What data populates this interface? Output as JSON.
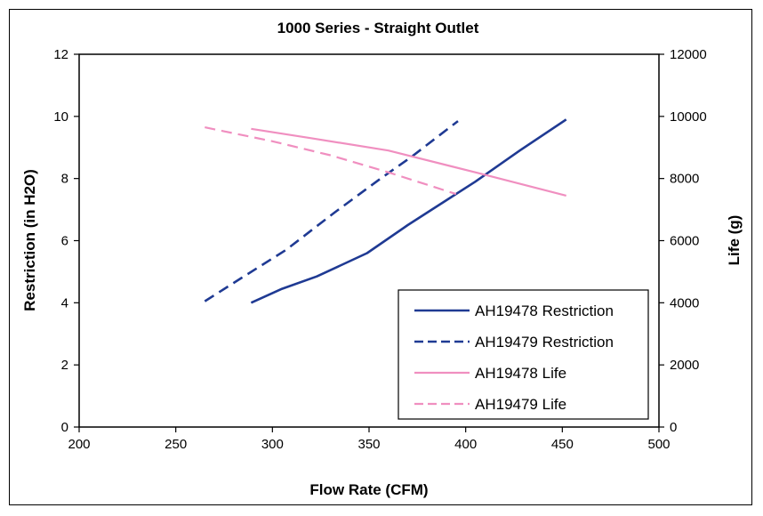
{
  "chart_data": {
    "type": "line",
    "title": "1000 Series - Straight Outlet",
    "xlabel": "Flow Rate (CFM)",
    "ylabel": "Restriction (in H2O)",
    "y2label": "Life (g)",
    "xlim": [
      200,
      500
    ],
    "ylim": [
      0,
      12
    ],
    "y2lim": [
      0,
      12000
    ],
    "x_ticks": [
      "200",
      "250",
      "300",
      "350",
      "400",
      "450",
      "500"
    ],
    "y_ticks": [
      "0",
      "2",
      "4",
      "6",
      "8",
      "10",
      "12"
    ],
    "y2_ticks": [
      "0",
      "2000",
      "4000",
      "6000",
      "8000",
      "10000",
      "12000"
    ],
    "grid": false,
    "legend_position": "bottom-right",
    "series": [
      {
        "name": "AH19478 Restriction",
        "axis": "left",
        "color": "#1f3a93",
        "dash": "solid",
        "points": [
          [
            289,
            4.0
          ],
          [
            305,
            4.45
          ],
          [
            323,
            4.85
          ],
          [
            349,
            5.6
          ],
          [
            370,
            6.5
          ],
          [
            390,
            7.3
          ],
          [
            405,
            7.9
          ],
          [
            428,
            8.9
          ],
          [
            452,
            9.9
          ]
        ]
      },
      {
        "name": "AH19479 Restriction",
        "axis": "left",
        "color": "#1f3a93",
        "dash": "dashed",
        "points": [
          [
            265,
            4.05
          ],
          [
            284,
            4.8
          ],
          [
            307,
            5.7
          ],
          [
            332,
            6.9
          ],
          [
            356,
            8.0
          ],
          [
            372,
            8.7
          ],
          [
            396,
            9.85
          ]
        ]
      },
      {
        "name": "AH19478 Life",
        "axis": "right",
        "color": "#f08fc0",
        "dash": "solid",
        "points": [
          [
            289,
            9600
          ],
          [
            320,
            9300
          ],
          [
            360,
            8900
          ],
          [
            405,
            8200
          ],
          [
            452,
            7450
          ]
        ]
      },
      {
        "name": "AH19479 Life",
        "axis": "right",
        "color": "#f08fc0",
        "dash": "dashed",
        "points": [
          [
            265,
            9650
          ],
          [
            300,
            9200
          ],
          [
            330,
            8750
          ],
          [
            360,
            8200
          ],
          [
            380,
            7800
          ],
          [
            395,
            7500
          ]
        ]
      }
    ]
  }
}
